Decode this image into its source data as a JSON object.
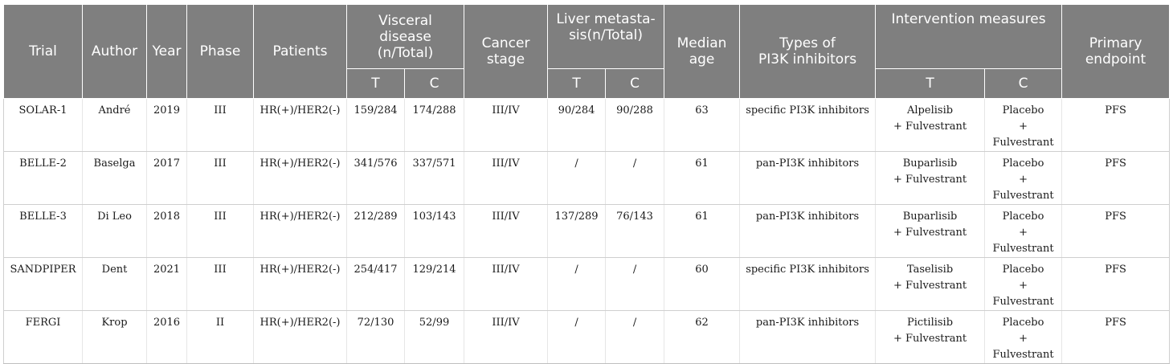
{
  "table": {
    "headers": {
      "trial": "Trial",
      "author": "Author",
      "year": "Year",
      "phase": "Phase",
      "patients": "Patients",
      "visceral": [
        "Visceral",
        "disease",
        "(n/Total)"
      ],
      "cancer_stage": [
        "Cancer",
        "stage"
      ],
      "liver": [
        "Liver metasta-",
        "sis(n/Total)"
      ],
      "median_age": [
        "Median",
        "age"
      ],
      "pi3k_types": [
        "Types of",
        "PI3K inhibitors"
      ],
      "intervention": "Intervention measures",
      "primary_endpoint": [
        "Primary",
        "endpoint"
      ],
      "sub_t": "T",
      "sub_c": "C"
    },
    "rows": [
      {
        "trial": "SOLAR-1",
        "author": "André",
        "year": "2019",
        "phase": "III",
        "patients": "HR(+)/HER2(-)",
        "visceral_t": "159/284",
        "visceral_c": "174/288",
        "stage": "III/IV",
        "liver_t": "90/284",
        "liver_c": "90/288",
        "age": "63",
        "type": "specific PI3K inhibitors",
        "int_t": [
          "Alpelisib",
          "+ Fulvestrant"
        ],
        "int_c": [
          "Placebo",
          "+ Fulvestrant"
        ],
        "endpoint": "PFS"
      },
      {
        "trial": "BELLE-2",
        "author": "Baselga",
        "year": "2017",
        "phase": "III",
        "patients": "HR(+)/HER2(-)",
        "visceral_t": "341/576",
        "visceral_c": "337/571",
        "stage": "III/IV",
        "liver_t": "/",
        "liver_c": "/",
        "age": "61",
        "type": "pan-PI3K inhibitors",
        "int_t": [
          "Buparlisib",
          "+ Fulvestrant"
        ],
        "int_c": [
          "Placebo",
          "+ Fulvestrant"
        ],
        "endpoint": "PFS"
      },
      {
        "trial": "BELLE-3",
        "author": "Di Leo",
        "year": "2018",
        "phase": "III",
        "patients": "HR(+)/HER2(-)",
        "visceral_t": "212/289",
        "visceral_c": "103/143",
        "stage": "III/IV",
        "liver_t": "137/289",
        "liver_c": "76/143",
        "age": "61",
        "type": "pan-PI3K inhibitors",
        "int_t": [
          "Buparlisib",
          "+ Fulvestrant"
        ],
        "int_c": [
          "Placebo",
          "+ Fulvestrant"
        ],
        "endpoint": "PFS"
      },
      {
        "trial": "SANDPIPER",
        "author": "Dent",
        "year": "2021",
        "phase": "III",
        "patients": "HR(+)/HER2(-)",
        "visceral_t": "254/417",
        "visceral_c": "129/214",
        "stage": "III/IV",
        "liver_t": "/",
        "liver_c": "/",
        "age": "60",
        "type": "specific PI3K inhibitors",
        "int_t": [
          "Taselisib",
          "+ Fulvestrant"
        ],
        "int_c": [
          "Placebo",
          "+ Fulvestrant"
        ],
        "endpoint": "PFS"
      },
      {
        "trial": "FERGI",
        "author": "Krop",
        "year": "2016",
        "phase": "II",
        "patients": "HR(+)/HER2(-)",
        "visceral_t": "72/130",
        "visceral_c": "52/99",
        "stage": "III/IV",
        "liver_t": "/",
        "liver_c": "/",
        "age": "62",
        "type": "pan-PI3K inhibitors",
        "int_t": [
          "Pictilisib",
          "+ Fulvestrant"
        ],
        "int_c": [
          "Placebo",
          "+ Fulvestrant"
        ],
        "endpoint": "PFS"
      }
    ]
  }
}
